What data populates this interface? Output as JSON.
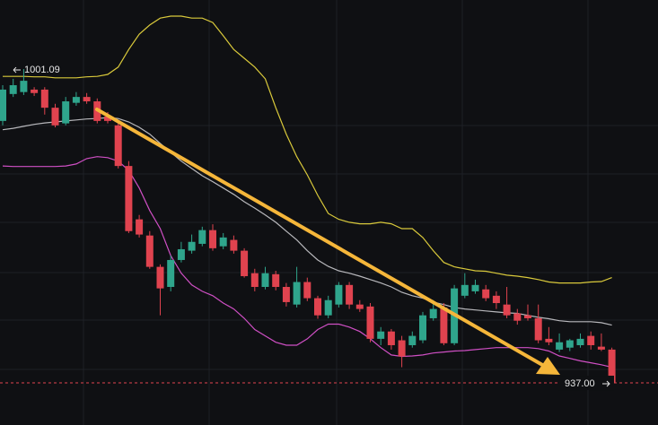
{
  "chart_data": {
    "type": "candlestick",
    "ylim": [
      928.4,
      1015.2
    ],
    "up_color": "#2fa58c",
    "down_color": "#e0434f",
    "open": [
      990.5,
      996.0,
      996.4,
      996.9,
      996.9,
      993.2,
      990.0,
      994.2,
      995.4,
      994.5,
      991.4,
      989.6,
      981.3,
      970.4,
      967.1,
      960.7,
      956.6,
      962.1,
      964.0,
      965.4,
      968.2,
      964.9,
      966.2,
      964.0,
      959.4,
      956.6,
      959.2,
      956.6,
      953.0,
      957.6,
      954.3,
      950.8,
      953.0,
      957.0,
      953.0,
      952.6,
      946.0,
      947.5,
      945.7,
      944.7,
      945.7,
      950.2,
      952.4,
      945.1,
      954.8,
      955.7,
      956.1,
      954.8,
      953.0,
      951.2,
      950.8,
      950.2,
      946.0,
      943.8,
      944.2,
      944.7,
      946.6,
      944.4,
      943.8
    ],
    "high": [
      997.8,
      999.1,
      1001.09,
      997.4,
      997.4,
      994.0,
      995.4,
      996.4,
      996.2,
      995.1,
      992.3,
      990.5,
      982.3,
      971.3,
      968.0,
      961.2,
      963.0,
      965.8,
      967.3,
      968.9,
      969.4,
      967.6,
      967.1,
      964.5,
      960.3,
      960.7,
      959.9,
      957.4,
      960.7,
      958.5,
      954.8,
      954.8,
      957.6,
      957.6,
      953.9,
      953.3,
      948.4,
      948.0,
      946.6,
      947.5,
      951.5,
      953.9,
      953.3,
      957.0,
      959.4,
      958.1,
      957.0,
      955.7,
      956.6,
      952.1,
      953.0,
      953.0,
      948.4,
      947.1,
      946.0,
      947.1,
      947.5,
      947.1,
      944.2
    ],
    "low": [
      989.6,
      995.4,
      995.8,
      995.6,
      991.8,
      989.2,
      989.6,
      993.6,
      994.0,
      990.0,
      990.0,
      980.8,
      967.6,
      966.7,
      960.3,
      950.8,
      955.7,
      961.6,
      963.4,
      964.9,
      964.0,
      964.3,
      963.4,
      958.5,
      955.7,
      956.1,
      955.9,
      952.6,
      952.4,
      953.7,
      950.1,
      950.2,
      952.4,
      952.1,
      951.5,
      945.3,
      944.7,
      943.8,
      940.2,
      944.2,
      945.1,
      949.7,
      944.7,
      944.7,
      954.3,
      955.2,
      953.7,
      952.1,
      950.2,
      948.9,
      949.7,
      945.1,
      944.7,
      943.3,
      943.5,
      944.2,
      943.8,
      943.5,
      936.8
    ],
    "close": [
      996.9,
      997.8,
      998.7,
      996.2,
      993.2,
      989.6,
      994.5,
      995.4,
      994.5,
      990.5,
      990.5,
      981.3,
      968.0,
      967.3,
      960.7,
      956.3,
      962.1,
      964.3,
      965.8,
      968.2,
      964.5,
      966.7,
      964.0,
      958.8,
      956.6,
      959.4,
      956.6,
      953.5,
      957.6,
      954.3,
      950.8,
      953.9,
      957.0,
      953.0,
      952.1,
      946.0,
      947.5,
      944.7,
      942.4,
      946.6,
      950.8,
      952.1,
      945.1,
      956.3,
      957.0,
      957.0,
      954.3,
      953.3,
      950.8,
      949.7,
      950.2,
      945.7,
      945.3,
      945.3,
      945.7,
      946.0,
      944.7,
      943.8,
      937.0
    ],
    "series": [
      {
        "color": "#d9c93b",
        "values": [
          999.6,
          999.6,
          999.6,
          999.5,
          999.5,
          999.3,
          999.3,
          999.3,
          999.5,
          999.6,
          1000.0,
          1001.5,
          1005.1,
          1008.2,
          1010.1,
          1011.5,
          1011.9,
          1011.9,
          1011.5,
          1011.5,
          1010.6,
          1007.9,
          1005.1,
          1003.3,
          1001.5,
          999.1,
          993.2,
          987.8,
          983.2,
          979.5,
          975.3,
          971.6,
          970.4,
          969.8,
          969.5,
          969.5,
          969.8,
          969.5,
          968.5,
          968.5,
          966.7,
          964.0,
          961.6,
          960.7,
          960.3,
          959.9,
          959.8,
          959.4,
          959.0,
          958.8,
          958.5,
          958.1,
          957.6,
          957.4,
          957.4,
          957.4,
          957.6,
          957.7,
          958.5
        ]
      },
      {
        "color": "#b8b8bc",
        "values": [
          988.7,
          989.0,
          989.4,
          989.8,
          990.1,
          990.3,
          990.5,
          990.7,
          990.9,
          991.0,
          991.2,
          991.0,
          990.3,
          989.2,
          987.8,
          985.9,
          984.1,
          982.3,
          980.8,
          979.3,
          978.1,
          976.8,
          975.5,
          974.0,
          972.7,
          971.3,
          969.8,
          968.0,
          966.2,
          964.0,
          962.1,
          960.8,
          959.9,
          959.4,
          958.8,
          958.1,
          957.4,
          956.6,
          955.5,
          954.8,
          954.3,
          953.5,
          953.0,
          952.4,
          952.1,
          951.9,
          951.7,
          951.5,
          951.3,
          951.2,
          950.8,
          950.4,
          950.1,
          949.7,
          949.5,
          949.5,
          949.5,
          949.3,
          948.8
        ]
      },
      {
        "color": "#cf4fc4",
        "values": [
          981.3,
          981.2,
          981.2,
          981.2,
          981.2,
          981.2,
          981.3,
          981.7,
          982.8,
          983.2,
          983.0,
          982.3,
          980.4,
          976.8,
          972.2,
          968.5,
          963.0,
          959.4,
          957.0,
          955.7,
          954.8,
          953.3,
          952.1,
          950.2,
          947.9,
          946.6,
          945.3,
          944.7,
          944.7,
          946.0,
          947.9,
          949.0,
          949.0,
          948.4,
          947.5,
          946.0,
          944.2,
          942.7,
          942.4,
          942.5,
          942.7,
          943.1,
          943.3,
          943.5,
          943.6,
          943.8,
          944.0,
          944.2,
          944.2,
          944.2,
          944.2,
          944.0,
          943.5,
          942.5,
          942.0,
          941.5,
          941.1,
          940.7,
          940.2
        ]
      }
    ],
    "high_marker": {
      "value": 1001.09,
      "label": "1001.09"
    },
    "last_price": {
      "value": 937.0,
      "label": "937.00"
    }
  }
}
